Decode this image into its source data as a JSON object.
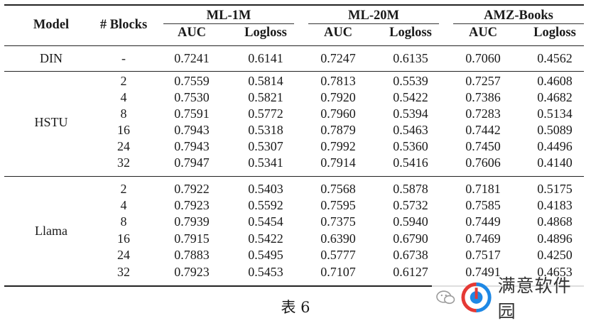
{
  "table": {
    "headers": {
      "model": "Model",
      "blocks": "# Blocks",
      "datasets": [
        "ML-1M",
        "ML-20M",
        "AMZ-Books"
      ],
      "metrics": [
        "AUC",
        "Logloss",
        "AUC",
        "Logloss",
        "AUC",
        "Logloss"
      ]
    },
    "groups": [
      {
        "model": "DIN",
        "rows": [
          [
            "-",
            "0.7241",
            "0.6141",
            "0.7247",
            "0.6135",
            "0.7060",
            "0.4562"
          ]
        ]
      },
      {
        "model": "HSTU",
        "rows": [
          [
            "2",
            "0.7559",
            "0.5814",
            "0.7813",
            "0.5539",
            "0.7257",
            "0.4608"
          ],
          [
            "4",
            "0.7530",
            "0.5821",
            "0.7920",
            "0.5422",
            "0.7386",
            "0.4682"
          ],
          [
            "8",
            "0.7591",
            "0.5772",
            "0.7960",
            "0.5394",
            "0.7283",
            "0.5134"
          ],
          [
            "16",
            "0.7943",
            "0.5318",
            "0.7879",
            "0.5463",
            "0.7442",
            "0.5089"
          ],
          [
            "24",
            "0.7943",
            "0.5307",
            "0.7992",
            "0.5360",
            "0.7450",
            "0.4496"
          ],
          [
            "32",
            "0.7947",
            "0.5341",
            "0.7914",
            "0.5416",
            "0.7606",
            "0.4140"
          ]
        ]
      },
      {
        "model": "Llama",
        "rows": [
          [
            "2",
            "0.7922",
            "0.5403",
            "0.7568",
            "0.5878",
            "0.7181",
            "0.5175"
          ],
          [
            "4",
            "0.7923",
            "0.5592",
            "0.7595",
            "0.5732",
            "0.7585",
            "0.4183"
          ],
          [
            "8",
            "0.7939",
            "0.5454",
            "0.7375",
            "0.5940",
            "0.7449",
            "0.4868"
          ],
          [
            "16",
            "0.7915",
            "0.5422",
            "0.6390",
            "0.6790",
            "0.7469",
            "0.4896"
          ],
          [
            "24",
            "0.7883",
            "0.5495",
            "0.5777",
            "0.6738",
            "0.7517",
            "0.4250"
          ],
          [
            "32",
            "0.7923",
            "0.5453",
            "0.7107",
            "0.6127",
            "0.7491",
            "0.4653"
          ]
        ]
      }
    ]
  },
  "caption": "表 6",
  "watermark": {
    "text": "满意软件园",
    "chat_icon": "wechat-icon",
    "logo_icon": "logo-icon",
    "logo_colors": [
      "#e53935",
      "#1e88e5"
    ]
  }
}
